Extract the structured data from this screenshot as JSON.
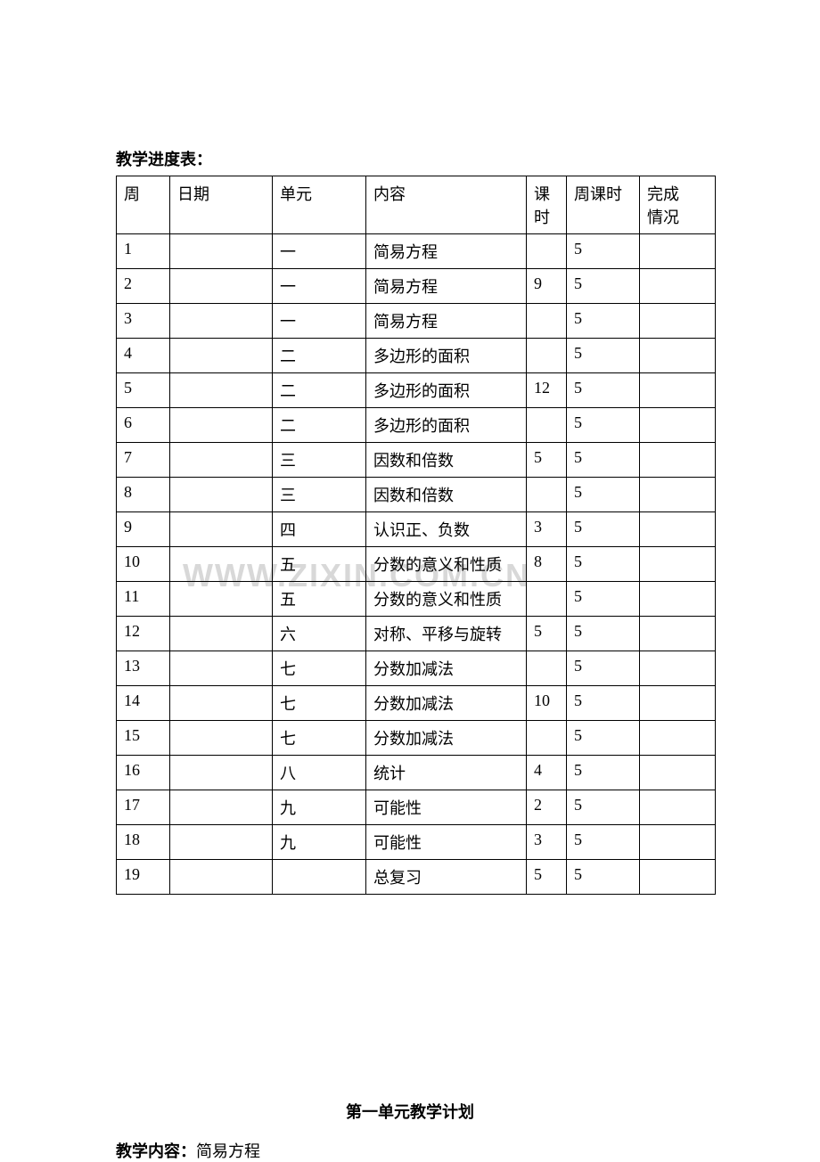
{
  "watermark_text": "WWW.ZIXIN.COM.CN",
  "table_title": "教学进度表：",
  "headers": {
    "week": "周",
    "date": "日期",
    "unit": "单元",
    "content": "内容",
    "hours": "课时",
    "weekhours": "周课时",
    "status_line1": "完",
    "status_line2": "成",
    "status_line3": "情况"
  },
  "rows": [
    {
      "week": "1",
      "date": "",
      "unit": "一",
      "content": "简易方程",
      "hours": "",
      "weekhours": "5",
      "status": ""
    },
    {
      "week": "2",
      "date": "",
      "unit": "一",
      "content": "简易方程",
      "hours": "9",
      "weekhours": "5",
      "status": ""
    },
    {
      "week": "3",
      "date": "",
      "unit": "一",
      "content": "简易方程",
      "hours": "",
      "weekhours": "5",
      "status": ""
    },
    {
      "week": "4",
      "date": "",
      "unit": "二",
      "content": "多边形的面积",
      "hours": "",
      "weekhours": "5",
      "status": ""
    },
    {
      "week": "5",
      "date": "",
      "unit": "二",
      "content": "多边形的面积",
      "hours": "12",
      "weekhours": "5",
      "status": ""
    },
    {
      "week": "6",
      "date": "",
      "unit": "二",
      "content": "多边形的面积",
      "hours": "",
      "weekhours": "5",
      "status": ""
    },
    {
      "week": "7",
      "date": "",
      "unit": "三",
      "content": "因数和倍数",
      "hours": "5",
      "weekhours": "5",
      "status": ""
    },
    {
      "week": "8",
      "date": "",
      "unit": "三",
      "content": "因数和倍数",
      "hours": "",
      "weekhours": "5",
      "status": ""
    },
    {
      "week": "9",
      "date": "",
      "unit": "四",
      "content": "认识正、负数",
      "hours": "3",
      "weekhours": "5",
      "status": ""
    },
    {
      "week": "10",
      "date": "",
      "unit": "五",
      "content": "分数的意义和性质",
      "hours": "8",
      "weekhours": "5",
      "status": ""
    },
    {
      "week": "11",
      "date": "",
      "unit": "五",
      "content": "分数的意义和性质",
      "hours": "",
      "weekhours": "5",
      "status": ""
    },
    {
      "week": "12",
      "date": "",
      "unit": "六",
      "content": "对称、平移与旋转",
      "hours": "5",
      "weekhours": "5",
      "status": ""
    },
    {
      "week": "13",
      "date": "",
      "unit": "七",
      "content": "分数加减法",
      "hours": "",
      "weekhours": "5",
      "status": ""
    },
    {
      "week": "14",
      "date": "",
      "unit": "七",
      "content": "分数加减法",
      "hours": "10",
      "weekhours": "5",
      "status": ""
    },
    {
      "week": "15",
      "date": "",
      "unit": "七",
      "content": "分数加减法",
      "hours": "",
      "weekhours": "5",
      "status": ""
    },
    {
      "week": "16",
      "date": "",
      "unit": "八",
      "content": "统计",
      "hours": "4",
      "weekhours": "5",
      "status": ""
    },
    {
      "week": "17",
      "date": "",
      "unit": "九",
      "content": "可能性",
      "hours": "2",
      "weekhours": "5",
      "status": ""
    },
    {
      "week": "18",
      "date": "",
      "unit": "九",
      "content": "可能性",
      "hours": "3",
      "weekhours": "5",
      "status": ""
    },
    {
      "week": "19",
      "date": "",
      "unit": "",
      "content": "总复习",
      "hours": "5",
      "weekhours": "5",
      "status": ""
    }
  ],
  "section_heading": "第一单元教学计划",
  "teaching_content": {
    "label": "教学内容：",
    "value": "简易方程"
  },
  "colors": {
    "background": "#ffffff",
    "text": "#000000",
    "border": "#000000",
    "watermark": "#d8d8d8"
  }
}
